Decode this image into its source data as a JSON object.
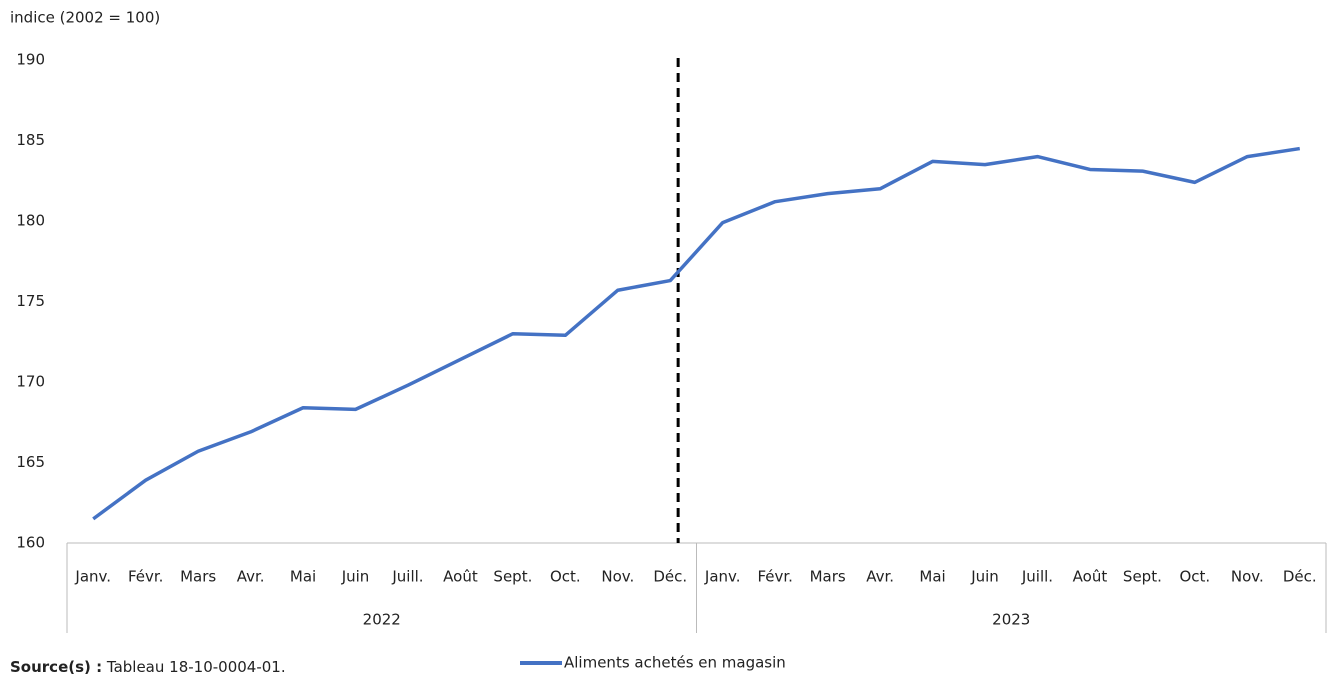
{
  "chart_data": {
    "type": "line",
    "y_axis_title": "indice (2002 = 100)",
    "categories": [
      "Janv.",
      "Févr.",
      "Mars",
      "Avr.",
      "Mai",
      "Juin",
      "Juill.",
      "Août",
      "Sept.",
      "Oct.",
      "Nov.",
      "Déc.",
      "Janv.",
      "Févr.",
      "Mars",
      "Avr.",
      "Mai",
      "Juin",
      "Juill.",
      "Août",
      "Sept.",
      "Oct.",
      "Nov.",
      "Déc."
    ],
    "category_groups": [
      "2022",
      "2023"
    ],
    "series": [
      {
        "name": "Aliments achetés en magasin",
        "color": "#4472c4",
        "values": [
          161.5,
          163.9,
          165.7,
          166.9,
          168.4,
          168.3,
          169.8,
          171.4,
          173.0,
          172.9,
          175.7,
          176.3,
          179.9,
          181.2,
          181.7,
          182.0,
          183.7,
          183.5,
          184.0,
          183.2,
          183.1,
          182.4,
          184.0,
          184.5
        ]
      }
    ],
    "ylim": [
      160,
      190
    ],
    "yticks": [
      160,
      165,
      170,
      175,
      180,
      185,
      190
    ],
    "grid": false,
    "legend": "bottom",
    "source_label": "Source(s) :",
    "source_text": "Tableau 18-10-0004-01."
  }
}
